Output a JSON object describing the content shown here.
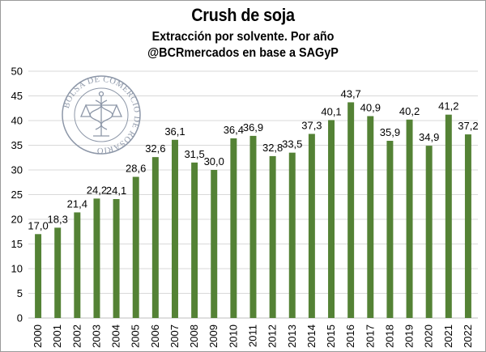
{
  "chart_data": {
    "type": "bar",
    "title": "Crush de soja",
    "subtitle_lines": [
      "Extracción por solvente. Por año",
      "@BCRmercados en base a SAGyP"
    ],
    "categories": [
      "2000",
      "2001",
      "2002",
      "2003",
      "2004",
      "2005",
      "2006",
      "2007",
      "2008",
      "2009",
      "2010",
      "2011",
      "2012",
      "2013",
      "2014",
      "2015",
      "2016",
      "2017",
      "2018",
      "2019",
      "2020",
      "2021",
      "2022"
    ],
    "values": [
      17.0,
      18.3,
      21.4,
      24.2,
      24.1,
      28.6,
      32.6,
      36.1,
      31.5,
      30.0,
      36.4,
      36.9,
      32.8,
      33.5,
      37.3,
      40.1,
      43.7,
      40.9,
      35.9,
      40.2,
      34.9,
      41.2,
      37.2
    ],
    "data_labels": [
      "17,0",
      "18,3",
      "21,4",
      "24,2",
      "24,1",
      "28,6",
      "32,6",
      "36,1",
      "31,5",
      "30,0",
      "36,4",
      "36,9",
      "32,8",
      "33,5",
      "37,3",
      "40,1",
      "43,7",
      "40,9",
      "35,9",
      "40,2",
      "34,9",
      "41,2",
      "37,2"
    ],
    "xlabel": "",
    "ylabel": "",
    "ylim": [
      0,
      50
    ],
    "yticks": [
      0,
      5,
      10,
      15,
      20,
      25,
      30,
      35,
      40,
      45,
      50
    ],
    "grid": true,
    "legend": "none",
    "bar_color": "#548235",
    "grid_color": "#d9d9d9"
  },
  "watermark": {
    "text": "BOLSA DE COMERCIO DE ROSARIO",
    "icon": "caduceus-scales-seal-icon",
    "color": "#8d97a8"
  }
}
